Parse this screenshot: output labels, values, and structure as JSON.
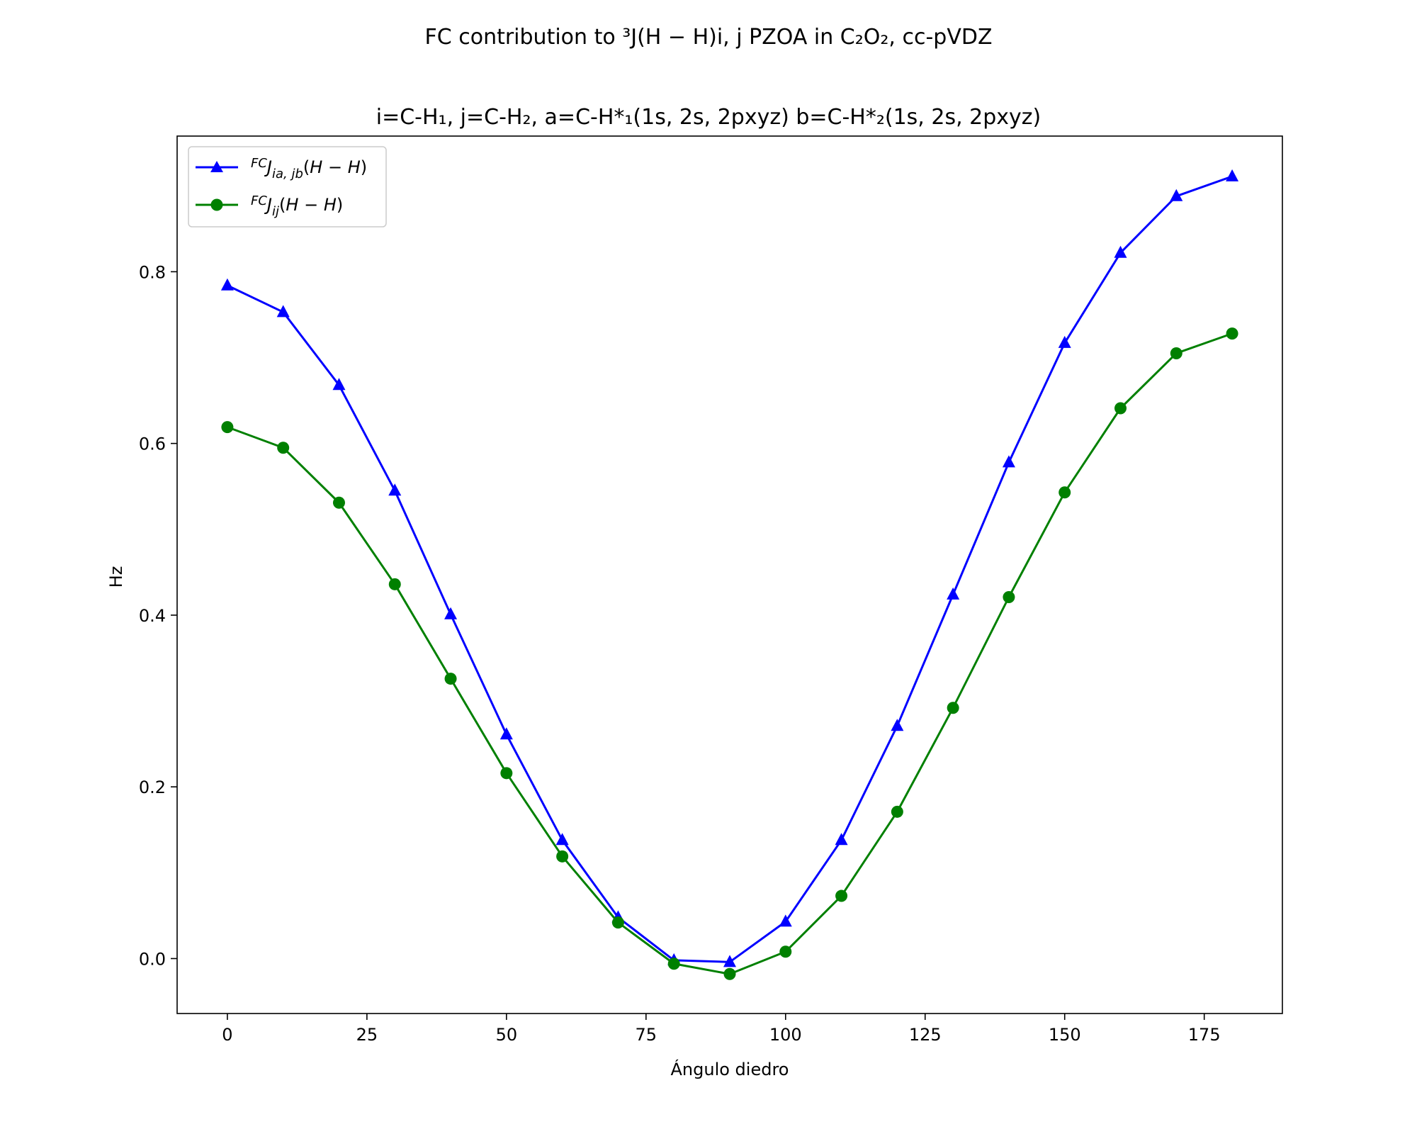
{
  "chart_data": {
    "type": "line",
    "title": "FC contribution to ³J(H − H)i, j PZOA in C₂O₂, cc-pVDZ",
    "subtitle": "i=C-H₁, j=C-H₂, a=C-H*₁(1s, 2s, 2pxyz) b=C-H*₂(1s, 2s, 2pxyz)",
    "xlabel": "Ángulo diedro",
    "ylabel": "Hz",
    "xlim": [
      -9,
      189
    ],
    "ylim": [
      -0.064,
      0.958
    ],
    "x_ticks": [
      0,
      25,
      50,
      75,
      100,
      125,
      150,
      175
    ],
    "x_tick_labels": [
      "0",
      "25",
      "50",
      "75",
      "100",
      "125",
      "150",
      "175"
    ],
    "y_ticks": [
      0.0,
      0.2,
      0.4,
      0.6,
      0.8
    ],
    "y_tick_labels": [
      "0.0",
      "0.2",
      "0.4",
      "0.6",
      "0.8"
    ],
    "grid": false,
    "legend_position": "top-left",
    "x": [
      0,
      10,
      20,
      30,
      40,
      50,
      60,
      70,
      80,
      90,
      100,
      110,
      120,
      130,
      140,
      150,
      160,
      170,
      180
    ],
    "series": [
      {
        "name": "FCJia, jb(H − H)",
        "color": "#0000ff",
        "marker": "triangle",
        "values": [
          0.784,
          0.753,
          0.668,
          0.545,
          0.401,
          0.261,
          0.138,
          0.048,
          -0.002,
          -0.004,
          0.043,
          0.138,
          0.271,
          0.424,
          0.578,
          0.717,
          0.822,
          0.888,
          0.911
        ]
      },
      {
        "name": "FCJij(H − H)",
        "color": "#008000",
        "marker": "circle",
        "values": [
          0.619,
          0.595,
          0.531,
          0.436,
          0.326,
          0.216,
          0.119,
          0.042,
          -0.006,
          -0.018,
          0.008,
          0.073,
          0.171,
          0.292,
          0.421,
          0.543,
          0.641,
          0.705,
          0.728
        ]
      }
    ]
  }
}
